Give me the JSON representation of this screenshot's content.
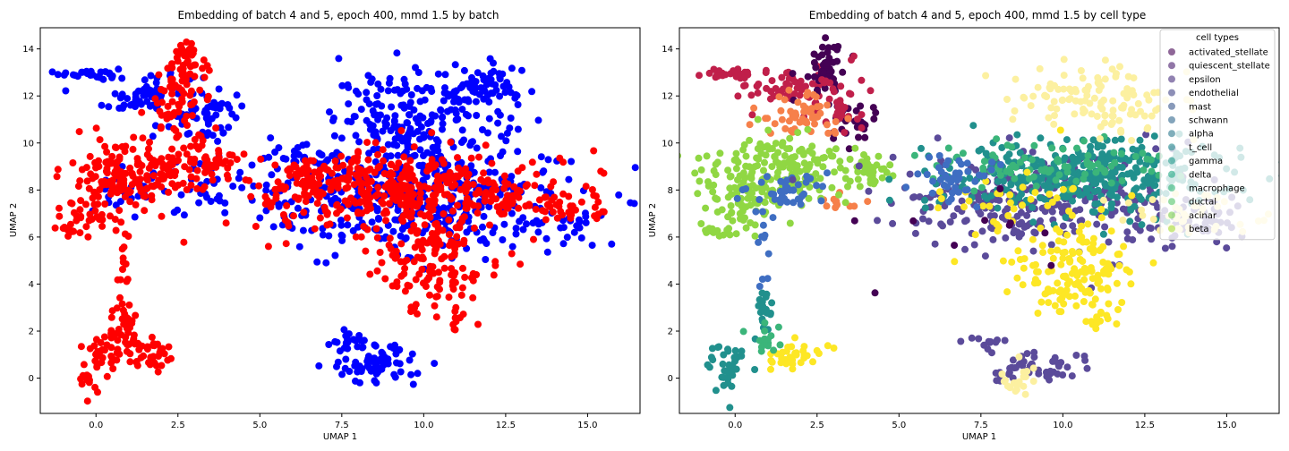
{
  "charts": [
    {
      "type": "scatter",
      "title": "Embedding of batch 4 and 5, epoch 400, mmd 1.5 by batch",
      "xlabel": "UMAP 1",
      "ylabel": "UMAP 2",
      "xlim": [
        -1.7,
        16.6
      ],
      "ylim": [
        -1.5,
        14.9
      ],
      "xticks": [
        0.0,
        2.5,
        5.0,
        7.5,
        10.0,
        12.5,
        15.0
      ],
      "xtick_labels": [
        "0.0",
        "2.5",
        "5.0",
        "7.5",
        "10.0",
        "12.5",
        "15.0"
      ],
      "yticks": [
        0,
        2,
        4,
        6,
        8,
        10,
        12,
        14
      ],
      "ytick_labels": [
        "0",
        "2",
        "4",
        "6",
        "8",
        "10",
        "12",
        "14"
      ],
      "grid": false,
      "legend": null,
      "series_colors": [
        "#0000ff",
        "#ff0000"
      ],
      "series_alpha": 1.0,
      "clusters": [
        {
          "series": 0,
          "cx": -0.2,
          "cy": 12.95,
          "sx": 0.45,
          "sy": 0.12,
          "n": 25
        },
        {
          "series": 0,
          "cx": 1.7,
          "cy": 12.0,
          "sx": 0.75,
          "sy": 0.6,
          "n": 70
        },
        {
          "series": 0,
          "cx": 3.5,
          "cy": 11.1,
          "sx": 0.55,
          "sy": 0.55,
          "n": 40
        },
        {
          "series": 0,
          "cx": 3.1,
          "cy": 8.0,
          "sx": 0.6,
          "sy": 0.5,
          "n": 25
        },
        {
          "series": 0,
          "cx": 9.9,
          "cy": 11.0,
          "sx": 1.3,
          "sy": 0.95,
          "n": 200
        },
        {
          "series": 0,
          "cx": 11.8,
          "cy": 12.3,
          "sx": 0.7,
          "sy": 0.5,
          "n": 60
        },
        {
          "series": 0,
          "cx": 9.7,
          "cy": 7.6,
          "sx": 2.5,
          "sy": 1.2,
          "n": 380
        },
        {
          "series": 0,
          "cx": 6.5,
          "cy": 9.2,
          "sx": 0.55,
          "sy": 0.45,
          "n": 35
        },
        {
          "series": 0,
          "cx": 14.5,
          "cy": 6.4,
          "sx": 0.55,
          "sy": 0.35,
          "n": 25
        },
        {
          "series": 0,
          "cx": 8.6,
          "cy": 0.6,
          "sx": 0.65,
          "sy": 0.5,
          "n": 70
        },
        {
          "series": 0,
          "cx": 7.6,
          "cy": 1.6,
          "sx": 0.35,
          "sy": 0.2,
          "n": 15
        },
        {
          "series": 0,
          "cx": 1.0,
          "cy": 7.8,
          "sx": 0.5,
          "sy": 0.5,
          "n": 30
        },
        {
          "series": 1,
          "cx": 1.2,
          "cy": 8.8,
          "sx": 1.0,
          "sy": 0.7,
          "n": 150
        },
        {
          "series": 1,
          "cx": 3.5,
          "cy": 9.2,
          "sx": 0.55,
          "sy": 0.35,
          "n": 40
        },
        {
          "series": 1,
          "cx": 2.6,
          "cy": 11.8,
          "sx": 0.5,
          "sy": 1.1,
          "n": 80
        },
        {
          "series": 1,
          "cx": 2.75,
          "cy": 13.7,
          "sx": 0.18,
          "sy": 0.3,
          "n": 22
        },
        {
          "series": 1,
          "cx": 0.0,
          "cy": 7.2,
          "sx": 0.45,
          "sy": 0.55,
          "n": 45
        },
        {
          "series": 1,
          "cx": -0.8,
          "cy": 6.3,
          "sx": 0.25,
          "sy": 0.15,
          "n": 12
        },
        {
          "series": 1,
          "cx": 0.9,
          "cy": 5.4,
          "sx": 0.15,
          "sy": 0.9,
          "n": 15
        },
        {
          "series": 1,
          "cx": 0.9,
          "cy": 2.4,
          "sx": 0.18,
          "sy": 0.6,
          "n": 30
        },
        {
          "series": 1,
          "cx": 0.3,
          "cy": 1.2,
          "sx": 0.35,
          "sy": 0.45,
          "n": 40
        },
        {
          "series": 1,
          "cx": 1.7,
          "cy": 1.0,
          "sx": 0.4,
          "sy": 0.3,
          "n": 35
        },
        {
          "series": 1,
          "cx": -0.2,
          "cy": 0.0,
          "sx": 0.15,
          "sy": 0.3,
          "n": 12
        },
        {
          "series": 1,
          "cx": 9.5,
          "cy": 7.9,
          "sx": 2.3,
          "sy": 0.9,
          "n": 420
        },
        {
          "series": 1,
          "cx": 14.3,
          "cy": 7.3,
          "sx": 0.7,
          "sy": 0.35,
          "n": 40
        },
        {
          "series": 1,
          "cx": 10.2,
          "cy": 4.8,
          "sx": 0.8,
          "sy": 0.9,
          "n": 110
        },
        {
          "series": 1,
          "cx": 11.0,
          "cy": 2.5,
          "sx": 0.2,
          "sy": 0.3,
          "n": 10
        },
        {
          "series": 1,
          "cx": 6.6,
          "cy": 8.5,
          "sx": 0.6,
          "sy": 0.5,
          "n": 45
        }
      ]
    },
    {
      "type": "scatter",
      "title": "Embedding of batch 4 and 5, epoch 400, mmd 1.5 by cell type",
      "xlabel": "UMAP 1",
      "ylabel": "UMAP 2",
      "xlim": [
        -1.7,
        16.6
      ],
      "ylim": [
        -1.5,
        14.9
      ],
      "xticks": [
        0.0,
        2.5,
        5.0,
        7.5,
        10.0,
        12.5,
        15.0
      ],
      "xtick_labels": [
        "0.0",
        "2.5",
        "5.0",
        "7.5",
        "10.0",
        "12.5",
        "15.0"
      ],
      "yticks": [
        0,
        2,
        4,
        6,
        8,
        10,
        12,
        14
      ],
      "ytick_labels": [
        "0",
        "2",
        "4",
        "6",
        "8",
        "10",
        "12",
        "14"
      ],
      "grid": false,
      "legend": {
        "title": "cell types",
        "placement": "top-right",
        "entries": [
          "activated_stellate",
          "quiescent_stellate",
          "epsilon",
          "endothelial",
          "mast",
          "schwann",
          "alpha",
          "t_cell",
          "gamma",
          "delta",
          "macrophage",
          "ductal",
          "acinar",
          "beta"
        ],
        "colors": [
          "#440154",
          "#481a6c",
          "#472f7d",
          "#414487",
          "#39568c",
          "#31688e",
          "#2a788e",
          "#23888e",
          "#1f988b",
          "#22a884",
          "#35b779",
          "#54c568",
          "#7ad151",
          "#a5db36"
        ],
        "alpha": 0.6
      },
      "series_colors": [
        "#440154",
        "#c01f4a",
        "#f6804a",
        "#3f6ec2",
        "#5b4b9a",
        "#21908d",
        "#3bb57a",
        "#90d743",
        "#fde725",
        "#fcf0a0"
      ],
      "series_alpha": 1.0,
      "clusters": [
        {
          "series": 1,
          "cx": -0.2,
          "cy": 12.95,
          "sx": 0.45,
          "sy": 0.12,
          "n": 25
        },
        {
          "series": 1,
          "cx": 1.6,
          "cy": 12.4,
          "sx": 0.6,
          "sy": 0.4,
          "n": 45
        },
        {
          "series": 0,
          "cx": 2.75,
          "cy": 13.2,
          "sx": 0.3,
          "sy": 0.6,
          "n": 50
        },
        {
          "series": 0,
          "cx": 3.6,
          "cy": 10.8,
          "sx": 0.4,
          "sy": 0.5,
          "n": 30
        },
        {
          "series": 1,
          "cx": 3.0,
          "cy": 11.8,
          "sx": 0.5,
          "sy": 0.7,
          "n": 40
        },
        {
          "series": 2,
          "cx": 2.0,
          "cy": 11.2,
          "sx": 0.7,
          "sy": 0.5,
          "n": 55
        },
        {
          "series": 2,
          "cx": 3.1,
          "cy": 7.6,
          "sx": 0.35,
          "sy": 0.35,
          "n": 12
        },
        {
          "series": 7,
          "cx": 1.2,
          "cy": 8.8,
          "sx": 1.1,
          "sy": 0.7,
          "n": 180
        },
        {
          "series": 7,
          "cx": 0.0,
          "cy": 7.2,
          "sx": 0.45,
          "sy": 0.55,
          "n": 45
        },
        {
          "series": 7,
          "cx": -0.8,
          "cy": 6.3,
          "sx": 0.25,
          "sy": 0.15,
          "n": 12
        },
        {
          "series": 7,
          "cx": 3.8,
          "cy": 8.9,
          "sx": 0.55,
          "sy": 0.35,
          "n": 40
        },
        {
          "series": 3,
          "cx": 1.5,
          "cy": 7.8,
          "sx": 0.6,
          "sy": 0.5,
          "n": 40
        },
        {
          "series": 3,
          "cx": 0.9,
          "cy": 5.4,
          "sx": 0.15,
          "sy": 0.9,
          "n": 12
        },
        {
          "series": 5,
          "cx": 0.9,
          "cy": 2.8,
          "sx": 0.15,
          "sy": 0.45,
          "n": 20
        },
        {
          "series": 5,
          "cx": -0.2,
          "cy": 0.4,
          "sx": 0.3,
          "sy": 0.6,
          "n": 40
        },
        {
          "series": 8,
          "cx": 1.7,
          "cy": 1.0,
          "sx": 0.45,
          "sy": 0.3,
          "n": 35
        },
        {
          "series": 6,
          "cx": 1.0,
          "cy": 1.8,
          "sx": 0.3,
          "sy": 0.4,
          "n": 15
        },
        {
          "series": 4,
          "cx": 9.3,
          "cy": 7.5,
          "sx": 2.3,
          "sy": 1.0,
          "n": 300
        },
        {
          "series": 4,
          "cx": 14.3,
          "cy": 6.6,
          "sx": 0.8,
          "sy": 0.5,
          "n": 50
        },
        {
          "series": 5,
          "cx": 10.6,
          "cy": 8.6,
          "sx": 2.2,
          "sy": 0.8,
          "n": 350
        },
        {
          "series": 6,
          "cx": 9.5,
          "cy": 9.0,
          "sx": 1.8,
          "sy": 0.5,
          "n": 90
        },
        {
          "series": 9,
          "cx": 11.0,
          "cy": 11.8,
          "sx": 1.3,
          "sy": 0.7,
          "n": 120
        },
        {
          "series": 9,
          "cx": 13.6,
          "cy": 7.0,
          "sx": 1.3,
          "sy": 0.5,
          "n": 40
        },
        {
          "series": 8,
          "cx": 10.4,
          "cy": 4.6,
          "sx": 0.8,
          "sy": 0.9,
          "n": 140
        },
        {
          "series": 8,
          "cx": 11.0,
          "cy": 2.5,
          "sx": 0.2,
          "sy": 0.3,
          "n": 10
        },
        {
          "series": 8,
          "cx": 8.8,
          "cy": 7.3,
          "sx": 1.5,
          "sy": 0.8,
          "n": 45
        },
        {
          "series": 3,
          "cx": 6.7,
          "cy": 8.6,
          "sx": 0.6,
          "sy": 0.5,
          "n": 40
        },
        {
          "series": 4,
          "cx": 9.2,
          "cy": 0.5,
          "sx": 0.7,
          "sy": 0.3,
          "n": 50
        },
        {
          "series": 4,
          "cx": 7.7,
          "cy": 1.5,
          "sx": 0.35,
          "sy": 0.2,
          "n": 12
        },
        {
          "series": 9,
          "cx": 8.7,
          "cy": -0.1,
          "sx": 0.3,
          "sy": 0.35,
          "n": 20
        },
        {
          "series": 0,
          "cx": 7.5,
          "cy": 6.5,
          "sx": 2.0,
          "sy": 1.0,
          "n": 10
        }
      ]
    }
  ]
}
